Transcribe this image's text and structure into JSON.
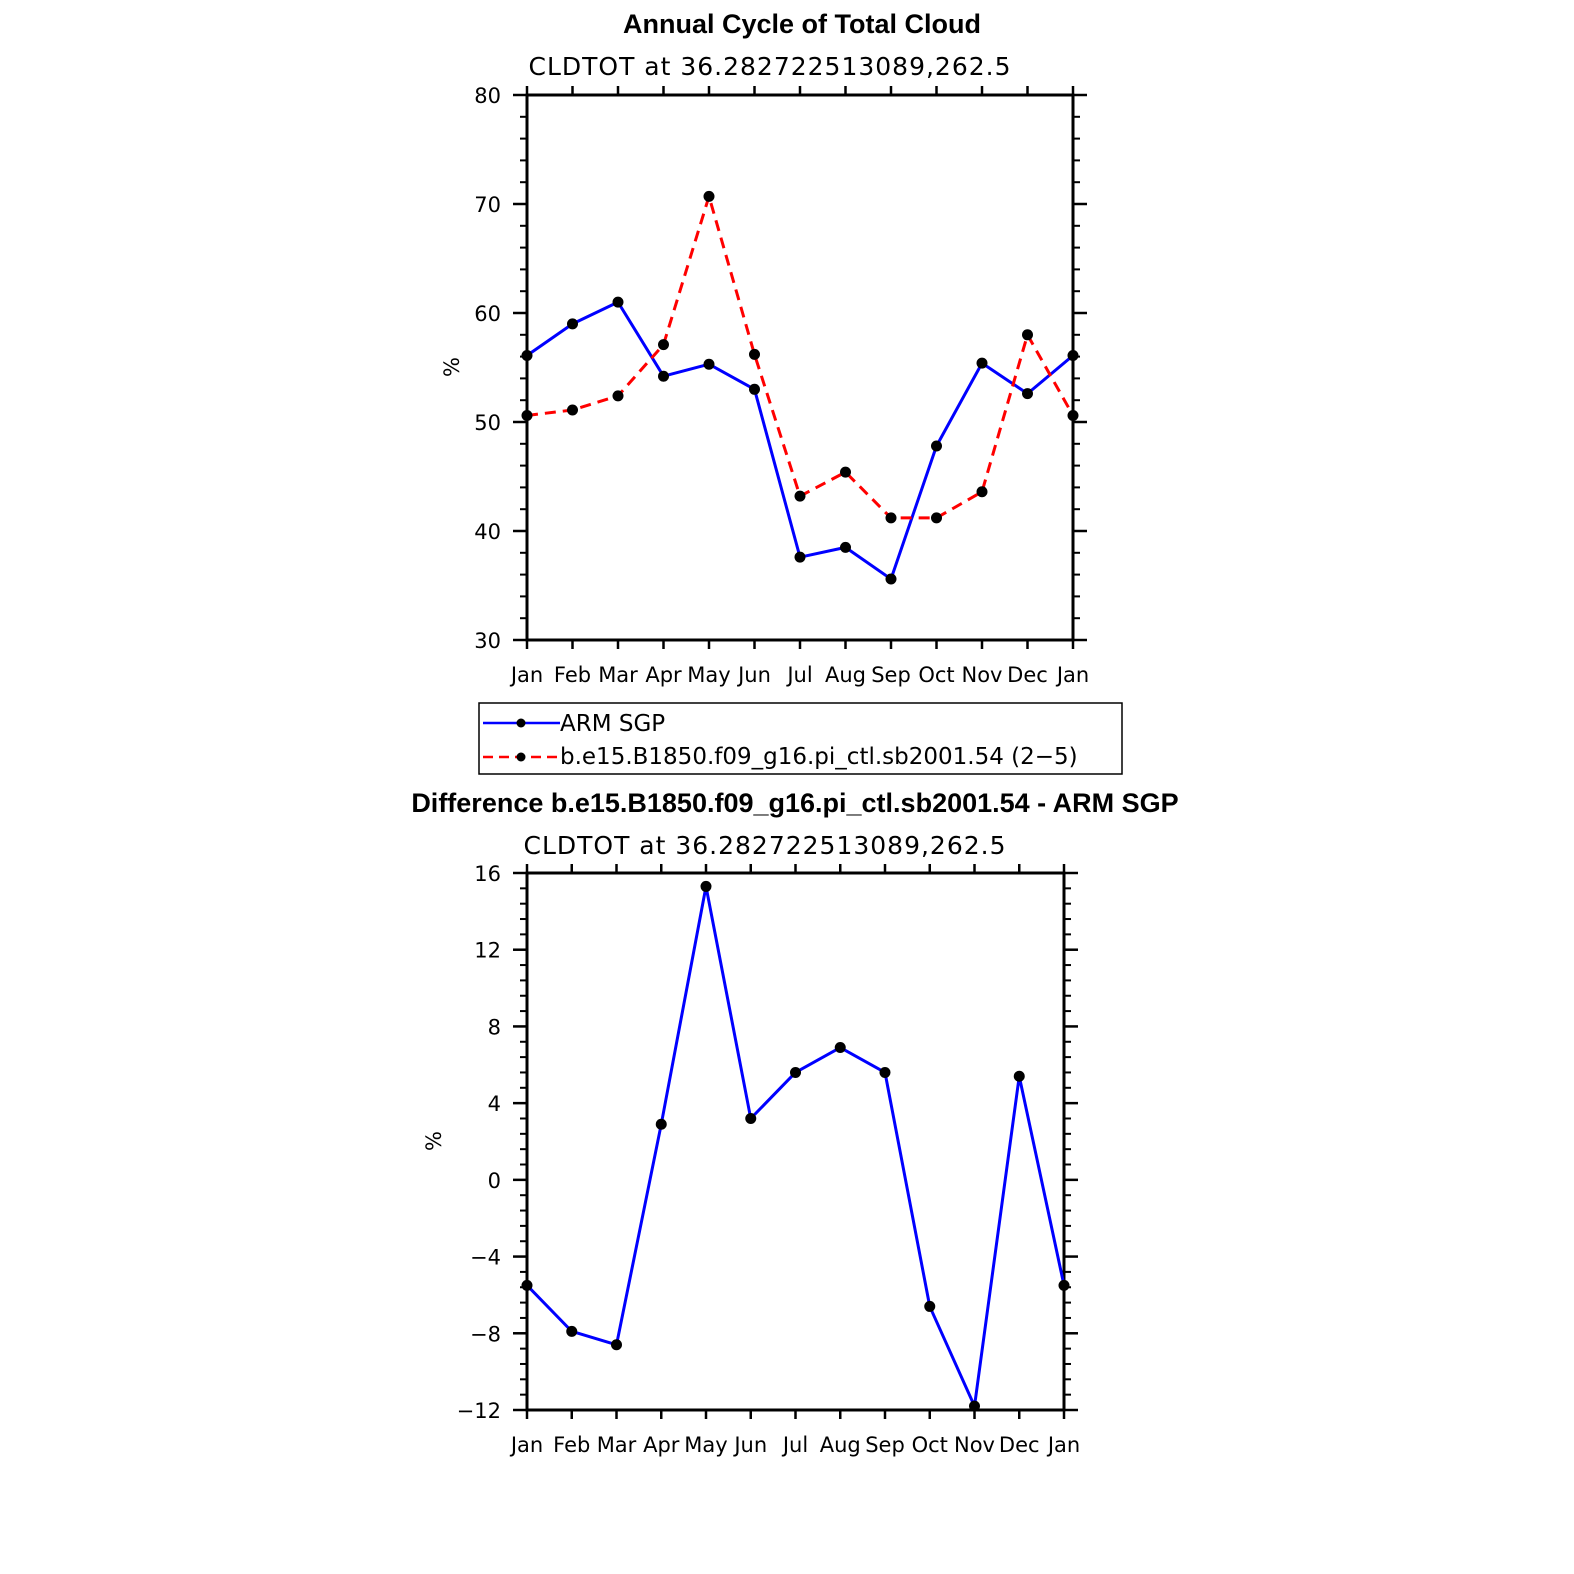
{
  "chart_data": [
    {
      "type": "line",
      "title": "Annual Cycle of Total Cloud",
      "subtitle": "CLDTOT at 36.282722513089,262.5",
      "xlabel": "",
      "ylabel": "%",
      "categories": [
        "Jan",
        "Feb",
        "Mar",
        "Apr",
        "May",
        "Jun",
        "Jul",
        "Aug",
        "Sep",
        "Oct",
        "Nov",
        "Dec",
        "Jan"
      ],
      "ylim": [
        30,
        80
      ],
      "yticks": [
        30,
        40,
        50,
        60,
        70,
        80
      ],
      "series": [
        {
          "name": "ARM SGP",
          "color": "#0000ff",
          "dash": "solid",
          "values": [
            56.1,
            59.0,
            61.0,
            54.2,
            55.3,
            53.0,
            37.6,
            38.5,
            35.6,
            47.8,
            55.4,
            52.6,
            56.1
          ]
        },
        {
          "name": "b.e15.B1850.f09_g16.pi_ctl.sb2001.54 (2−5)",
          "color": "#ff0000",
          "dash": "dashed",
          "values": [
            50.6,
            51.1,
            52.4,
            57.1,
            70.7,
            56.2,
            43.2,
            45.4,
            41.2,
            41.2,
            43.6,
            58.0,
            50.6
          ]
        }
      ],
      "legend": {
        "position": "below"
      }
    },
    {
      "type": "line",
      "title": "Difference b.e15.B1850.f09_g16.pi_ctl.sb2001.54 - ARM SGP",
      "subtitle": "CLDTOT at 36.282722513089,262.5",
      "xlabel": "",
      "ylabel": "%",
      "categories": [
        "Jan",
        "Feb",
        "Mar",
        "Apr",
        "May",
        "Jun",
        "Jul",
        "Aug",
        "Sep",
        "Oct",
        "Nov",
        "Dec",
        "Jan"
      ],
      "ylim": [
        -12,
        16
      ],
      "yticks": [
        -12,
        -8,
        -4,
        0,
        4,
        8,
        12,
        16
      ],
      "ytick_labels": [
        "−12",
        "−8",
        "−4",
        "0",
        "4",
        "8",
        "12",
        "16"
      ],
      "series": [
        {
          "name": "Difference",
          "color": "#0000ff",
          "dash": "solid",
          "values": [
            -5.5,
            -7.9,
            -8.6,
            2.9,
            15.3,
            3.2,
            5.6,
            6.9,
            5.6,
            -6.6,
            -11.8,
            5.4,
            -5.5
          ]
        }
      ]
    }
  ]
}
